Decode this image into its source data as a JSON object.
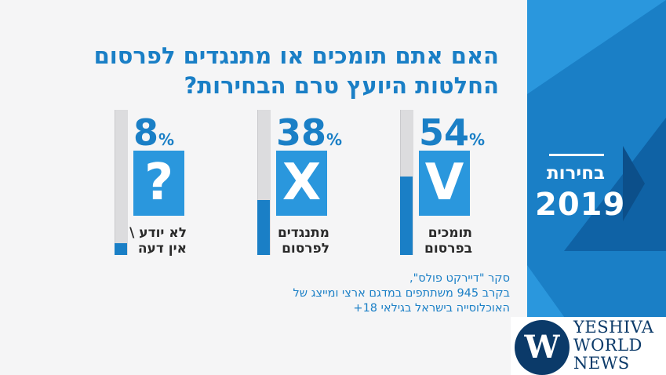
{
  "title_lines": [
    "האם אתם תומכים או מתנגדים לפרסום",
    "החלטות היועץ טרם הבחירות?"
  ],
  "badge": {
    "word": "בחירות",
    "year": "2019"
  },
  "chart_data": {
    "type": "bar",
    "categories": [
      "תומכים בפרסום",
      "מתנגדים לפרסום",
      "לא יודע \\ אין דעה"
    ],
    "values": [
      54,
      38,
      8
    ],
    "value_labels": [
      "54",
      "38",
      "8"
    ],
    "percent_sign": "%",
    "icons": [
      "V",
      "X",
      "?"
    ],
    "icon_names": [
      "check-icon",
      "x-icon",
      "question-icon"
    ],
    "label_lines": [
      [
        "תומכים",
        "בפרסום"
      ],
      [
        "מתנגדים",
        "לפרסום"
      ],
      [
        "לא יודע \\",
        "אין דעה"
      ]
    ],
    "ylim": [
      0,
      100
    ],
    "colors": {
      "fill": "#1a7fc6",
      "track": "#dcdcde",
      "icon_bg": "#2a97dd"
    }
  },
  "footnote_lines": [
    "סקר \"דיירקט פולס\",",
    "בקרב 945 משתתפים במדגם ארצי ומייצג של",
    "האוכלוסייה בישראל בגילאי 18+"
  ],
  "logo": {
    "line1": "YESHIVA",
    "line2": "WORLD",
    "line3": "NEWS",
    "mark": "W"
  }
}
